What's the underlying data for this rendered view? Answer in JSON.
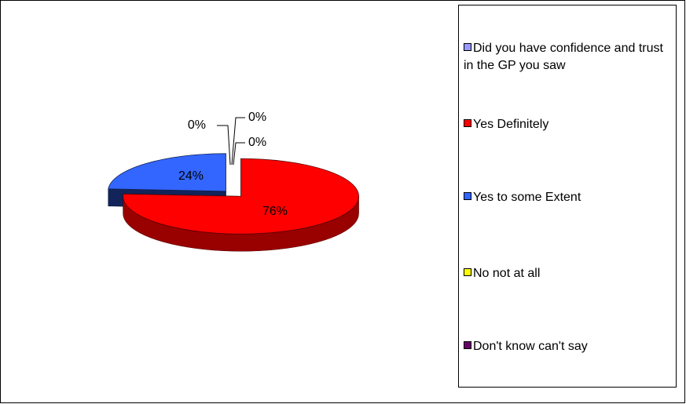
{
  "chart_data": {
    "type": "pie3d",
    "categories": [
      "Did you have confidence and trust in the GP you saw",
      "Yes Definitely",
      "Yes to some Extent",
      "No not at all",
      "Don't know can't say"
    ],
    "values": [
      0,
      76,
      24,
      0,
      0
    ],
    "value_labels": [
      "0%",
      "76%",
      "24%",
      "0%",
      "0%"
    ],
    "colors": [
      "#9999ff",
      "#ff0000",
      "#3366ff",
      "#ffff00",
      "#660066"
    ]
  }
}
